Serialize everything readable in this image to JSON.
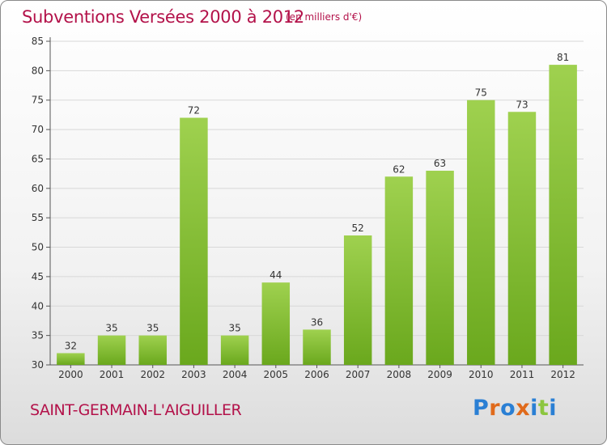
{
  "title": "Subventions Versées 2000 à 2012",
  "subtitle": "(en milliers d'€)",
  "commune": "SAINT-GERMAIN-L'AIGUILLER",
  "logo": {
    "text": "Proxiti",
    "letter_colors": [
      "#2a7fd4",
      "#e06a1b",
      "#2a7fd4",
      "#e06a1b",
      "#2a7fd4",
      "#8cc63f",
      "#2a7fd4"
    ]
  },
  "colors": {
    "bar_light": "#9fd14f",
    "bar_dark": "#6aa81d",
    "text": "#b3124a",
    "axis_text": "#333333",
    "grid": "#d8d8d8"
  },
  "chart_data": {
    "type": "bar",
    "categories": [
      "2000",
      "2001",
      "2002",
      "2003",
      "2004",
      "2005",
      "2006",
      "2007",
      "2008",
      "2009",
      "2010",
      "2011",
      "2012"
    ],
    "values": [
      32,
      35,
      35,
      72,
      35,
      44,
      36,
      52,
      62,
      63,
      75,
      73,
      81
    ],
    "ylim": [
      30,
      85
    ],
    "yticks": [
      30,
      35,
      40,
      45,
      50,
      55,
      60,
      65,
      70,
      75,
      80,
      85
    ],
    "grid": true
  }
}
